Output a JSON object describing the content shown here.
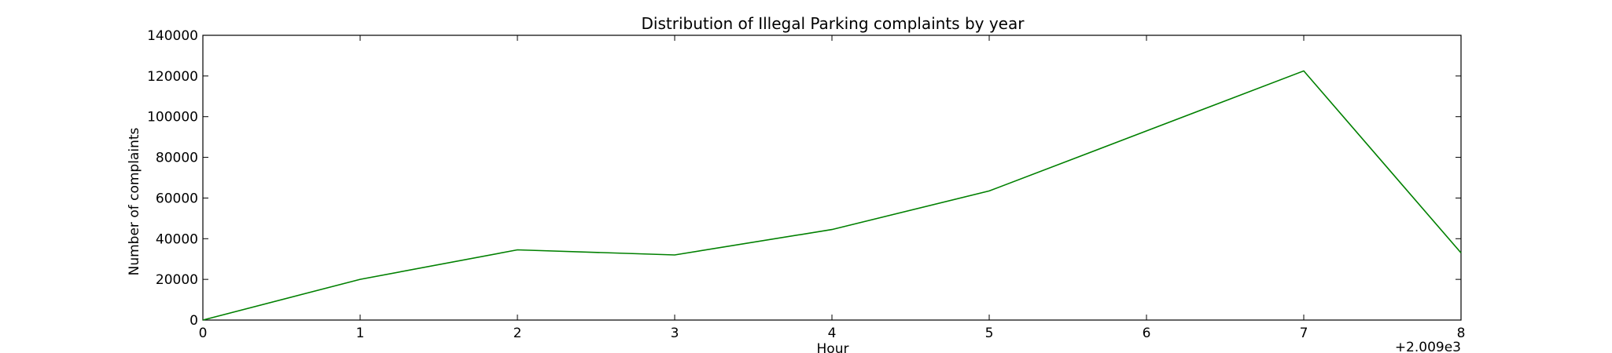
{
  "chart_data": {
    "type": "line",
    "title": "Distribution of  Illegal Parking complaints by year",
    "xlabel": "Hour",
    "ylabel": "Number of complaints",
    "x_offset_label": "+2.009e3",
    "x": [
      0,
      1,
      2,
      3,
      4,
      5,
      6,
      7,
      8
    ],
    "xlim": [
      0,
      8
    ],
    "ylim": [
      0,
      140000
    ],
    "x_ticks": [
      "0",
      "1",
      "2",
      "3",
      "4",
      "5",
      "6",
      "7",
      "8"
    ],
    "y_ticks": [
      "0",
      "20000",
      "40000",
      "60000",
      "80000",
      "100000",
      "120000",
      "140000"
    ],
    "series": [
      {
        "values": [
          0,
          20000,
          34500,
          32000,
          44500,
          63500,
          93000,
          122500,
          33000
        ],
        "color": "#008000"
      }
    ],
    "grid": false,
    "legend": "none"
  }
}
